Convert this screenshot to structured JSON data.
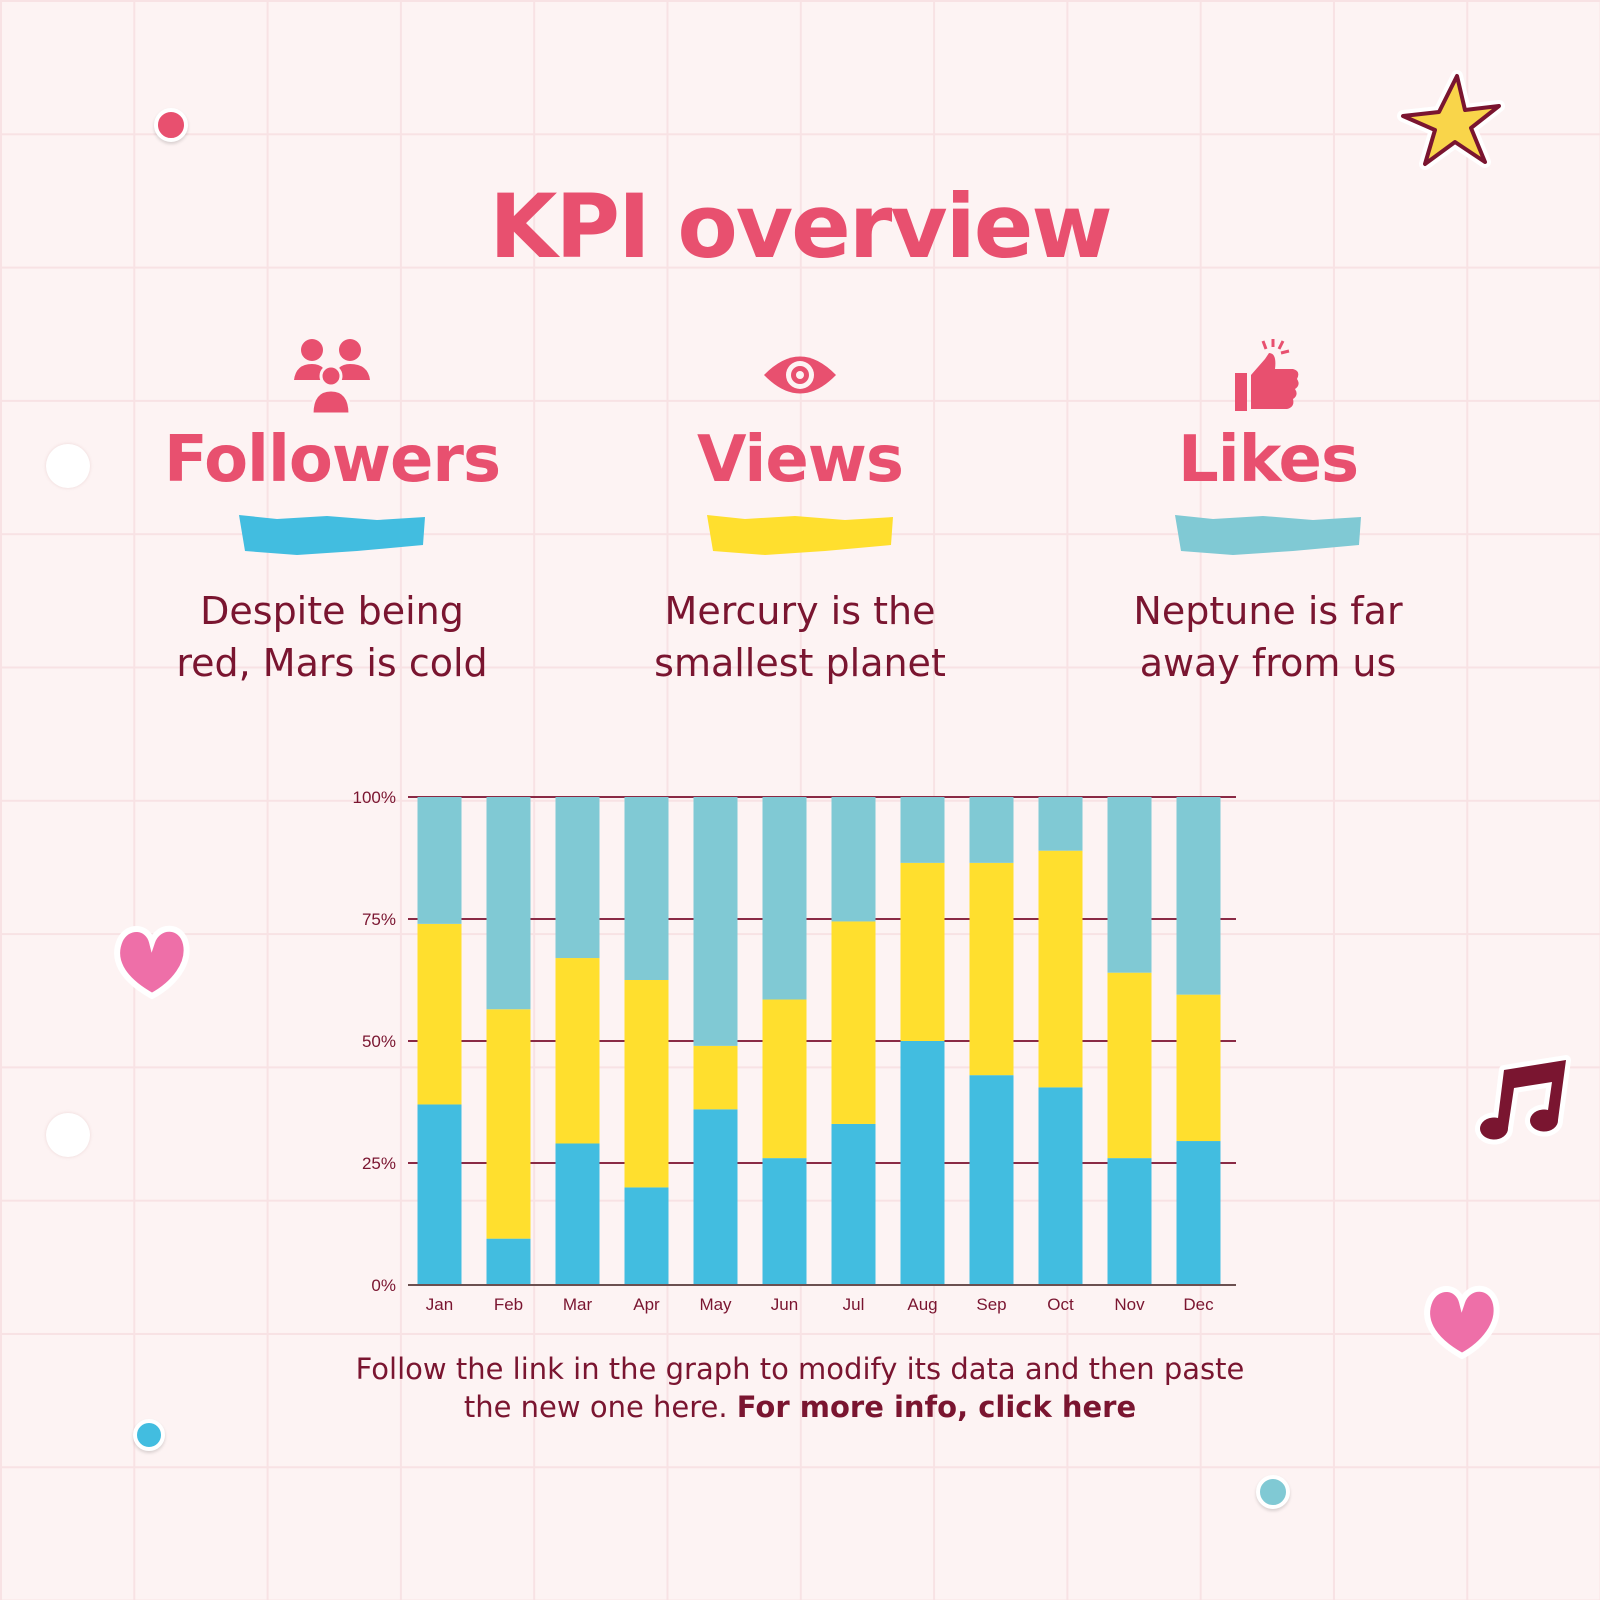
{
  "title": "KPI overview",
  "kpis": [
    {
      "label": "Followers",
      "icon": "users-icon",
      "color": "#42BDE0",
      "text1": "Despite being",
      "text2": "red, Mars is cold"
    },
    {
      "label": "Views",
      "icon": "eye-icon",
      "color": "#FFDF2E",
      "text1": "Mercury is the",
      "text2": "smallest planet"
    },
    {
      "label": "Likes",
      "icon": "thumbs-up-icon",
      "color": "#80C9D4",
      "text1": "Neptune is far",
      "text2": "away from us"
    }
  ],
  "note": {
    "text1": "Follow the link in the graph to modify its data and then paste",
    "text2": "the new one here. ",
    "link": "For more info, click here"
  },
  "colors": {
    "accent": "#E8506F",
    "text": "#7A1530",
    "background": "#FDF3F3"
  },
  "chart_data": {
    "type": "bar",
    "stacked": true,
    "categories": [
      "Jan",
      "Feb",
      "Mar",
      "Apr",
      "May",
      "Jun",
      "Jul",
      "Aug",
      "Sep",
      "Oct",
      "Nov",
      "Dec"
    ],
    "series": [
      {
        "color": "#42BDE0",
        "values": [
          37,
          9.5,
          29,
          20,
          36,
          26,
          33,
          50,
          43,
          40.5,
          26,
          29.5
        ]
      },
      {
        "color": "#FFDF2E",
        "values": [
          37,
          47,
          38,
          42.5,
          13,
          32.5,
          41.5,
          36.5,
          43.5,
          48.5,
          38,
          30
        ]
      },
      {
        "color": "#80C9D4",
        "values": [
          26,
          43.5,
          33,
          37.5,
          51,
          41.5,
          25.5,
          13.5,
          13.5,
          11,
          36,
          40.5
        ]
      }
    ],
    "ylim": [
      0,
      100
    ],
    "yticks": [
      "0%",
      "25%",
      "50%",
      "75%",
      "100%"
    ],
    "grid": true
  }
}
